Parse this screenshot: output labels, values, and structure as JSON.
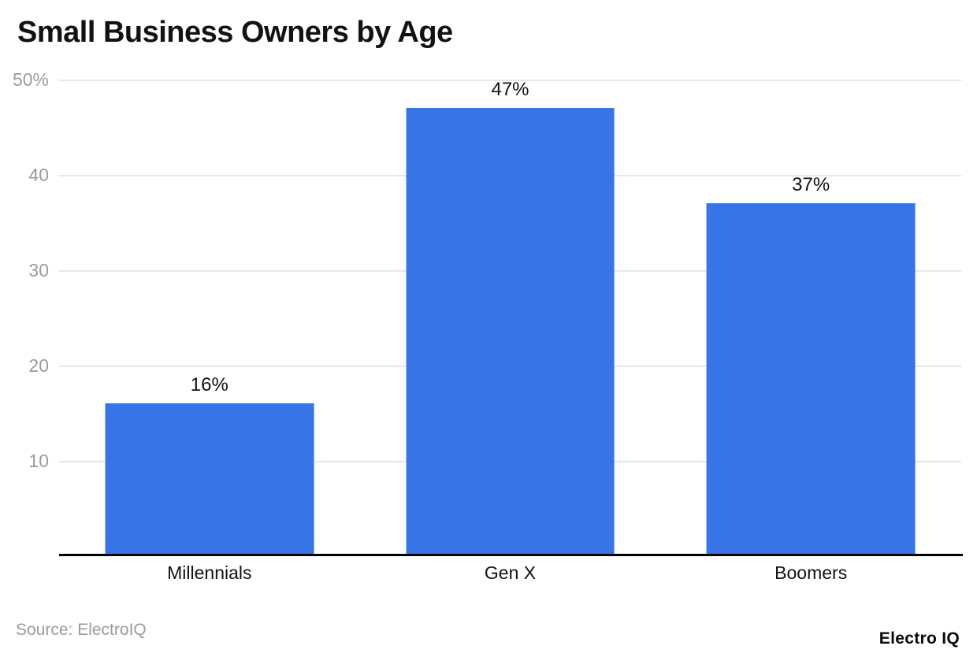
{
  "chart_data": {
    "type": "bar",
    "title": "Small Business Owners by Age",
    "categories": [
      "Millennials",
      "Gen X",
      "Boomers"
    ],
    "values": [
      16,
      47,
      37
    ],
    "value_labels": [
      "16%",
      "47%",
      "37%"
    ],
    "xlabel": "",
    "ylabel": "",
    "ylim": [
      0,
      50
    ],
    "yticks": [
      {
        "value": 50,
        "label": "50%"
      },
      {
        "value": 40,
        "label": "40"
      },
      {
        "value": 30,
        "label": "30"
      },
      {
        "value": 20,
        "label": "20"
      },
      {
        "value": 10,
        "label": "10"
      }
    ],
    "grid": true,
    "legend": "none",
    "bar_color": "#3674e8",
    "gridline_color": "#e7e7e7",
    "tick_label_color": "#9b9b9b",
    "axis_color": "#000000"
  },
  "footer": {
    "source": "Source: ElectroIQ",
    "brand": "Electro IQ"
  }
}
